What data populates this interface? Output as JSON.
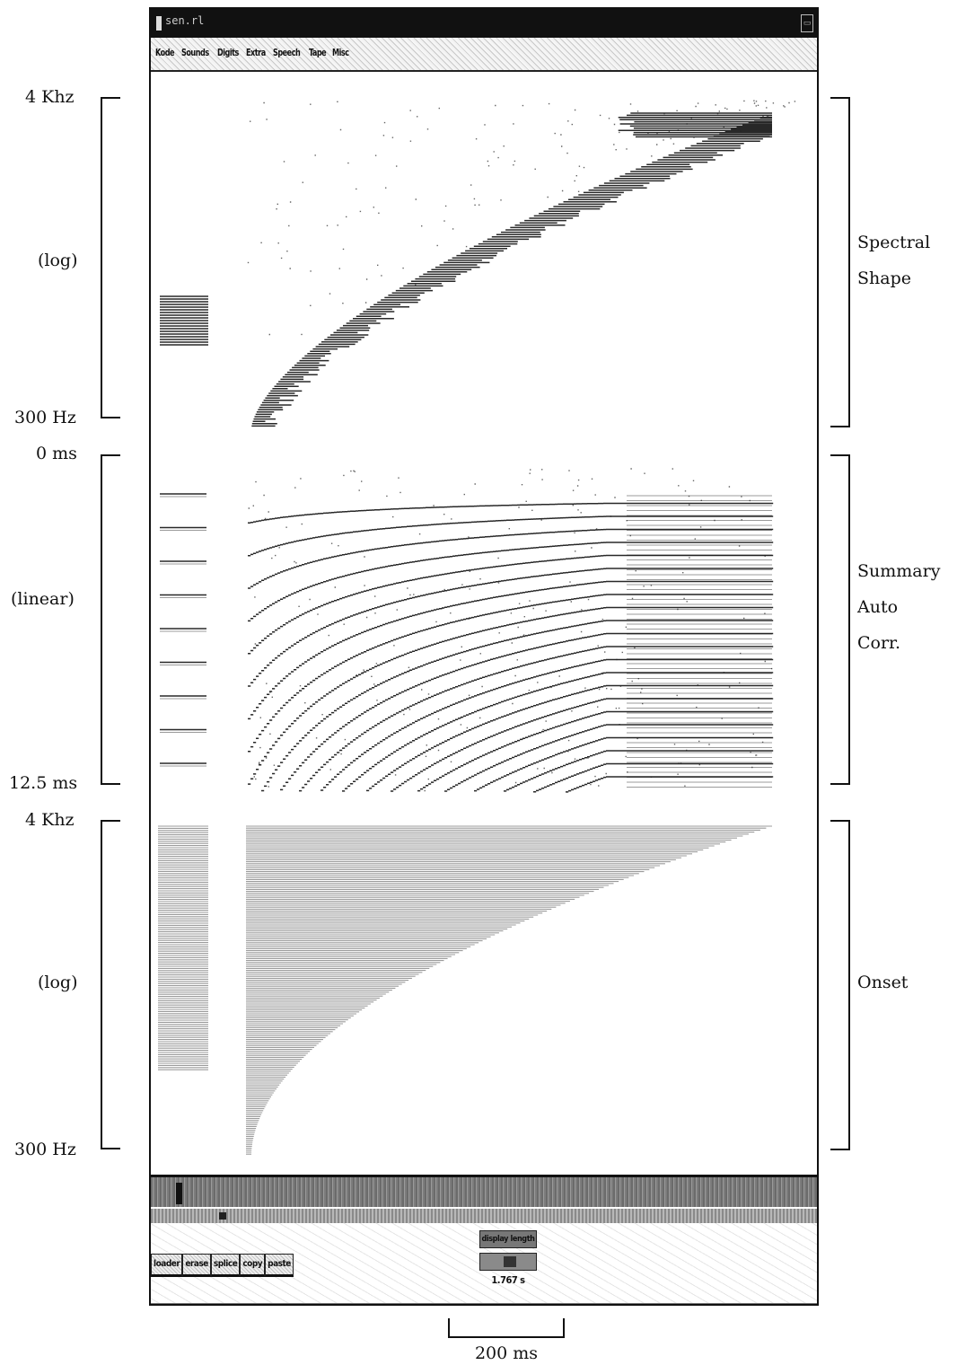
{
  "window": {
    "title": "sen.rl",
    "menu": [
      "Kode",
      "Sounds",
      "Digits",
      "Extra",
      "Speech",
      "Tape",
      "Misc"
    ]
  },
  "panels": [
    {
      "name": "Spectral Shape",
      "right_label": [
        "Spectral",
        "Shape"
      ],
      "axis_top": "4 Khz",
      "axis_mid": "(log)",
      "axis_bottom": "300 Hz"
    },
    {
      "name": "Summary Auto Corr.",
      "right_label": [
        "Summary",
        "Auto",
        "Corr."
      ],
      "axis_top": "0 ms",
      "axis_mid": "(linear)",
      "axis_bottom": "12.5 ms"
    },
    {
      "name": "Onset",
      "right_label": [
        "Onset"
      ],
      "axis_top": "4 Khz",
      "axis_mid": "(log)",
      "axis_bottom": "300 Hz"
    }
  ],
  "controls": {
    "edit_buttons": [
      "loader",
      "erase",
      "splice",
      "copy",
      "paste"
    ],
    "display_length_label": "display length",
    "display_length_value": "1.767 s"
  },
  "scale_bar": {
    "label": "200 ms"
  }
}
